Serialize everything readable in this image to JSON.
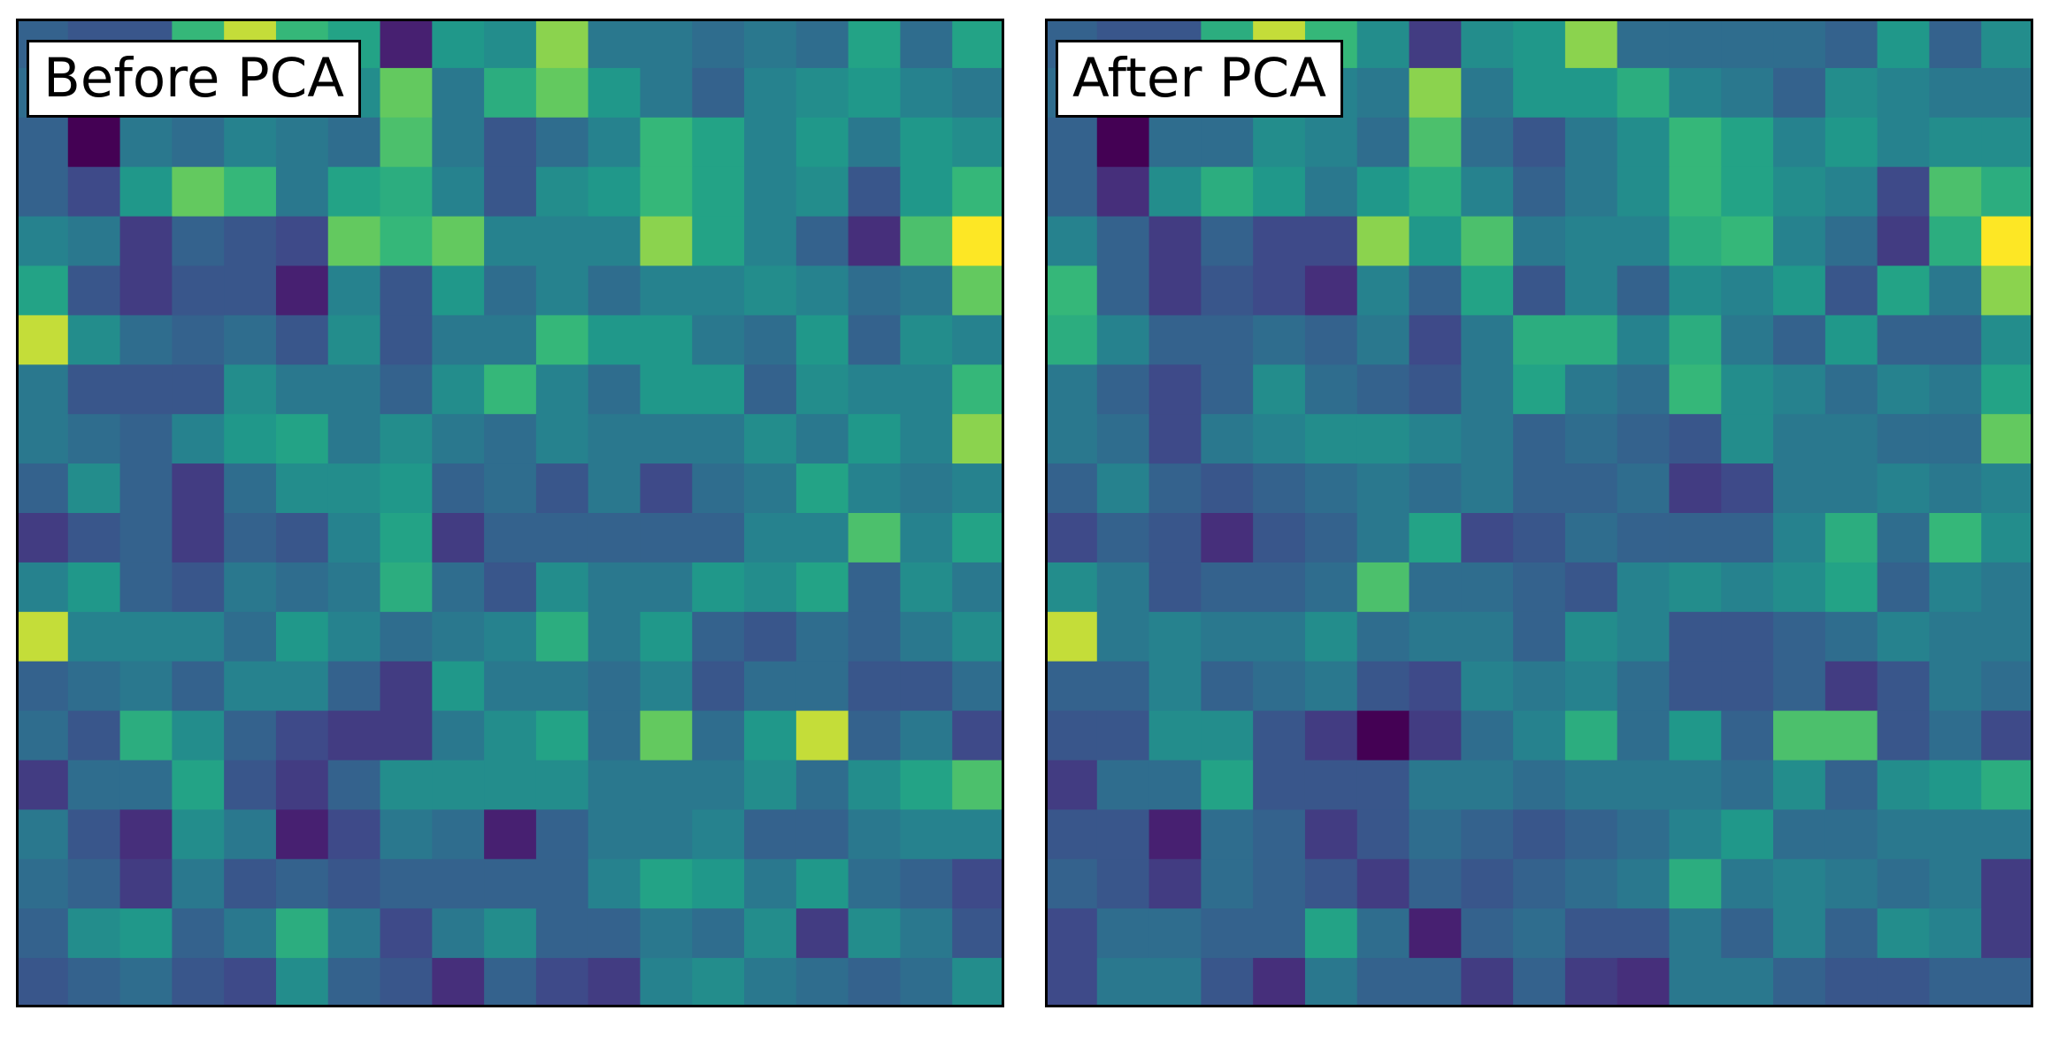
{
  "chart_data": [
    {
      "type": "heatmap",
      "title": "Before PCA",
      "colormap": "viridis",
      "vmin": 0.0,
      "vmax": 1.0,
      "grid": false,
      "values": [
        [
          0.35,
          0.3,
          0.3,
          0.75,
          0.95,
          0.75,
          0.65,
          0.1,
          0.6,
          0.55,
          0.9,
          0.45,
          0.45,
          0.4,
          0.45,
          0.4,
          0.65,
          0.4,
          0.65
        ],
        [
          0.4,
          0.45,
          0.45,
          0.5,
          0.55,
          0.5,
          0.55,
          0.85,
          0.45,
          0.7,
          0.85,
          0.6,
          0.45,
          0.35,
          0.5,
          0.55,
          0.6,
          0.5,
          0.45
        ],
        [
          0.35,
          0.0,
          0.45,
          0.4,
          0.5,
          0.45,
          0.4,
          0.8,
          0.45,
          0.3,
          0.4,
          0.5,
          0.75,
          0.65,
          0.5,
          0.6,
          0.45,
          0.6,
          0.55
        ],
        [
          0.35,
          0.25,
          0.6,
          0.85,
          0.75,
          0.45,
          0.65,
          0.7,
          0.5,
          0.3,
          0.55,
          0.6,
          0.75,
          0.65,
          0.5,
          0.55,
          0.3,
          0.6,
          0.75
        ],
        [
          0.5,
          0.45,
          0.2,
          0.35,
          0.3,
          0.25,
          0.85,
          0.75,
          0.85,
          0.5,
          0.5,
          0.5,
          0.9,
          0.65,
          0.5,
          0.35,
          0.15,
          0.8,
          1.0
        ],
        [
          0.65,
          0.3,
          0.2,
          0.3,
          0.3,
          0.1,
          0.5,
          0.3,
          0.6,
          0.4,
          0.5,
          0.4,
          0.5,
          0.5,
          0.55,
          0.5,
          0.4,
          0.45,
          0.85
        ],
        [
          0.95,
          0.55,
          0.4,
          0.35,
          0.4,
          0.3,
          0.55,
          0.3,
          0.45,
          0.45,
          0.75,
          0.6,
          0.6,
          0.45,
          0.4,
          0.6,
          0.35,
          0.55,
          0.5
        ],
        [
          0.45,
          0.3,
          0.3,
          0.3,
          0.55,
          0.45,
          0.45,
          0.35,
          0.55,
          0.75,
          0.5,
          0.4,
          0.6,
          0.6,
          0.35,
          0.55,
          0.5,
          0.5,
          0.75
        ],
        [
          0.45,
          0.4,
          0.35,
          0.5,
          0.6,
          0.65,
          0.45,
          0.55,
          0.45,
          0.4,
          0.5,
          0.45,
          0.45,
          0.45,
          0.55,
          0.45,
          0.6,
          0.5,
          0.9
        ],
        [
          0.35,
          0.55,
          0.35,
          0.2,
          0.4,
          0.55,
          0.55,
          0.6,
          0.35,
          0.4,
          0.3,
          0.45,
          0.25,
          0.4,
          0.45,
          0.65,
          0.5,
          0.45,
          0.5
        ],
        [
          0.2,
          0.3,
          0.35,
          0.2,
          0.35,
          0.3,
          0.5,
          0.65,
          0.2,
          0.35,
          0.35,
          0.35,
          0.35,
          0.35,
          0.5,
          0.5,
          0.8,
          0.5,
          0.65
        ],
        [
          0.5,
          0.6,
          0.35,
          0.3,
          0.45,
          0.4,
          0.45,
          0.7,
          0.4,
          0.3,
          0.55,
          0.45,
          0.45,
          0.6,
          0.55,
          0.65,
          0.35,
          0.55,
          0.45
        ],
        [
          0.95,
          0.5,
          0.5,
          0.5,
          0.4,
          0.6,
          0.5,
          0.4,
          0.45,
          0.5,
          0.7,
          0.45,
          0.6,
          0.35,
          0.3,
          0.4,
          0.35,
          0.45,
          0.55
        ],
        [
          0.35,
          0.4,
          0.45,
          0.35,
          0.5,
          0.5,
          0.35,
          0.2,
          0.6,
          0.45,
          0.45,
          0.4,
          0.5,
          0.3,
          0.4,
          0.4,
          0.3,
          0.3,
          0.4
        ],
        [
          0.4,
          0.3,
          0.7,
          0.55,
          0.35,
          0.25,
          0.2,
          0.2,
          0.45,
          0.55,
          0.65,
          0.4,
          0.85,
          0.4,
          0.6,
          0.95,
          0.35,
          0.45,
          0.25
        ],
        [
          0.2,
          0.4,
          0.4,
          0.65,
          0.3,
          0.2,
          0.35,
          0.55,
          0.55,
          0.55,
          0.55,
          0.45,
          0.45,
          0.45,
          0.55,
          0.4,
          0.55,
          0.65,
          0.8
        ],
        [
          0.45,
          0.3,
          0.15,
          0.55,
          0.45,
          0.1,
          0.25,
          0.45,
          0.4,
          0.1,
          0.35,
          0.45,
          0.45,
          0.5,
          0.35,
          0.35,
          0.45,
          0.5,
          0.5
        ],
        [
          0.4,
          0.35,
          0.2,
          0.45,
          0.3,
          0.35,
          0.3,
          0.35,
          0.35,
          0.35,
          0.35,
          0.5,
          0.65,
          0.6,
          0.45,
          0.6,
          0.4,
          0.35,
          0.25
        ],
        [
          0.35,
          0.55,
          0.6,
          0.35,
          0.45,
          0.7,
          0.45,
          0.25,
          0.45,
          0.55,
          0.35,
          0.35,
          0.45,
          0.4,
          0.55,
          0.2,
          0.55,
          0.45,
          0.3
        ],
        [
          0.3,
          0.35,
          0.4,
          0.3,
          0.25,
          0.55,
          0.35,
          0.3,
          0.15,
          0.35,
          0.25,
          0.2,
          0.5,
          0.55,
          0.45,
          0.4,
          0.35,
          0.4,
          0.55
        ]
      ]
    },
    {
      "type": "heatmap",
      "title": "After PCA",
      "colormap": "viridis",
      "vmin": 0.0,
      "vmax": 1.0,
      "grid": false,
      "values": [
        [
          0.35,
          0.3,
          0.3,
          0.7,
          0.95,
          0.75,
          0.55,
          0.2,
          0.55,
          0.6,
          0.9,
          0.4,
          0.4,
          0.4,
          0.4,
          0.35,
          0.6,
          0.35,
          0.55
        ],
        [
          0.4,
          0.4,
          0.45,
          0.45,
          0.5,
          0.5,
          0.45,
          0.9,
          0.45,
          0.6,
          0.6,
          0.7,
          0.5,
          0.45,
          0.35,
          0.55,
          0.5,
          0.45,
          0.45
        ],
        [
          0.35,
          0.0,
          0.4,
          0.4,
          0.55,
          0.5,
          0.4,
          0.8,
          0.4,
          0.3,
          0.45,
          0.55,
          0.75,
          0.65,
          0.5,
          0.6,
          0.5,
          0.55,
          0.55
        ],
        [
          0.35,
          0.15,
          0.55,
          0.7,
          0.6,
          0.45,
          0.6,
          0.7,
          0.5,
          0.35,
          0.45,
          0.55,
          0.75,
          0.65,
          0.55,
          0.5,
          0.25,
          0.8,
          0.7
        ],
        [
          0.5,
          0.35,
          0.2,
          0.35,
          0.25,
          0.25,
          0.9,
          0.6,
          0.8,
          0.45,
          0.5,
          0.5,
          0.7,
          0.75,
          0.5,
          0.4,
          0.2,
          0.7,
          1.0
        ],
        [
          0.75,
          0.35,
          0.2,
          0.3,
          0.25,
          0.15,
          0.5,
          0.35,
          0.65,
          0.3,
          0.5,
          0.35,
          0.55,
          0.5,
          0.6,
          0.3,
          0.65,
          0.45,
          0.9
        ],
        [
          0.7,
          0.5,
          0.35,
          0.35,
          0.4,
          0.35,
          0.45,
          0.25,
          0.45,
          0.7,
          0.7,
          0.5,
          0.7,
          0.45,
          0.35,
          0.6,
          0.35,
          0.35,
          0.55
        ],
        [
          0.45,
          0.35,
          0.25,
          0.35,
          0.55,
          0.4,
          0.35,
          0.3,
          0.45,
          0.65,
          0.45,
          0.4,
          0.75,
          0.55,
          0.5,
          0.4,
          0.5,
          0.45,
          0.65
        ],
        [
          0.45,
          0.4,
          0.25,
          0.45,
          0.5,
          0.55,
          0.55,
          0.5,
          0.45,
          0.35,
          0.4,
          0.35,
          0.3,
          0.55,
          0.45,
          0.45,
          0.4,
          0.4,
          0.85
        ],
        [
          0.35,
          0.5,
          0.35,
          0.3,
          0.35,
          0.4,
          0.45,
          0.4,
          0.45,
          0.35,
          0.35,
          0.4,
          0.2,
          0.25,
          0.45,
          0.45,
          0.5,
          0.45,
          0.5
        ],
        [
          0.25,
          0.35,
          0.3,
          0.15,
          0.3,
          0.35,
          0.45,
          0.65,
          0.25,
          0.3,
          0.4,
          0.35,
          0.35,
          0.35,
          0.5,
          0.7,
          0.4,
          0.75,
          0.55
        ],
        [
          0.55,
          0.45,
          0.3,
          0.35,
          0.35,
          0.4,
          0.8,
          0.4,
          0.4,
          0.35,
          0.3,
          0.5,
          0.55,
          0.5,
          0.55,
          0.65,
          0.35,
          0.5,
          0.45
        ],
        [
          0.95,
          0.45,
          0.5,
          0.45,
          0.45,
          0.55,
          0.4,
          0.45,
          0.45,
          0.35,
          0.55,
          0.5,
          0.3,
          0.3,
          0.35,
          0.4,
          0.5,
          0.45,
          0.45
        ],
        [
          0.35,
          0.35,
          0.5,
          0.35,
          0.4,
          0.45,
          0.3,
          0.25,
          0.5,
          0.45,
          0.5,
          0.4,
          0.3,
          0.3,
          0.35,
          0.2,
          0.3,
          0.45,
          0.4
        ],
        [
          0.3,
          0.3,
          0.55,
          0.55,
          0.3,
          0.2,
          0.0,
          0.2,
          0.4,
          0.5,
          0.7,
          0.4,
          0.6,
          0.35,
          0.8,
          0.8,
          0.3,
          0.4,
          0.25
        ],
        [
          0.2,
          0.4,
          0.4,
          0.65,
          0.3,
          0.3,
          0.3,
          0.45,
          0.45,
          0.4,
          0.45,
          0.45,
          0.45,
          0.4,
          0.55,
          0.35,
          0.55,
          0.6,
          0.7
        ],
        [
          0.3,
          0.3,
          0.1,
          0.4,
          0.35,
          0.2,
          0.3,
          0.4,
          0.35,
          0.3,
          0.35,
          0.4,
          0.5,
          0.6,
          0.4,
          0.4,
          0.45,
          0.45,
          0.45
        ],
        [
          0.35,
          0.3,
          0.2,
          0.4,
          0.35,
          0.3,
          0.2,
          0.35,
          0.3,
          0.35,
          0.4,
          0.45,
          0.7,
          0.45,
          0.5,
          0.45,
          0.4,
          0.45,
          0.2
        ],
        [
          0.25,
          0.4,
          0.4,
          0.35,
          0.35,
          0.65,
          0.4,
          0.1,
          0.35,
          0.4,
          0.3,
          0.3,
          0.45,
          0.35,
          0.5,
          0.35,
          0.55,
          0.5,
          0.2
        ],
        [
          0.25,
          0.45,
          0.45,
          0.3,
          0.15,
          0.45,
          0.35,
          0.35,
          0.2,
          0.35,
          0.2,
          0.15,
          0.45,
          0.45,
          0.35,
          0.3,
          0.3,
          0.35,
          0.35
        ]
      ]
    }
  ]
}
